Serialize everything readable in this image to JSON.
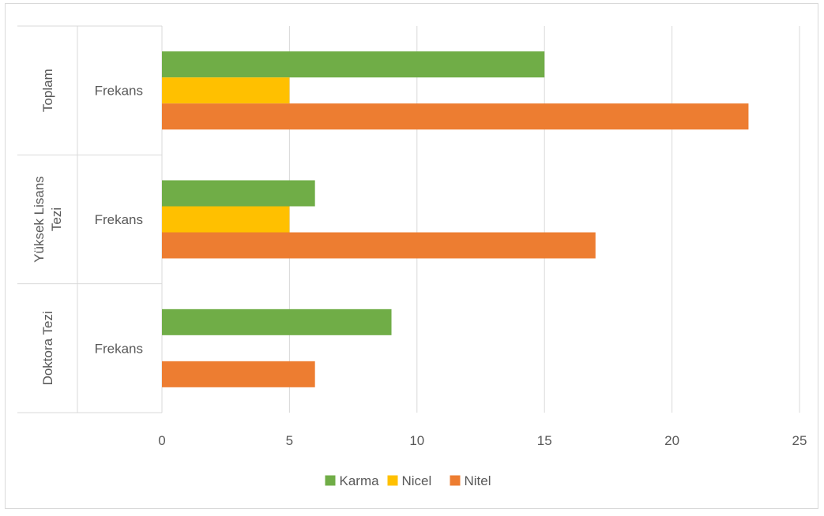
{
  "chart_data": {
    "type": "bar",
    "orientation": "horizontal",
    "title": "",
    "xlabel": "",
    "ylabel": "",
    "xlim": [
      0,
      25
    ],
    "x_ticks": [
      0,
      5,
      10,
      15,
      20,
      25
    ],
    "grid": "vertical",
    "legend_position": "bottom",
    "groups": [
      {
        "group": "Toplam",
        "category": "Frekans"
      },
      {
        "group": "Yüksek Lisans Tezi",
        "category": "Frekans"
      },
      {
        "group": "Doktora Tezi",
        "category": "Frekans"
      }
    ],
    "series": [
      {
        "name": "Karma",
        "color": "#70AD47",
        "values": [
          15,
          6,
          9
        ]
      },
      {
        "name": "Nicel",
        "color": "#FFC000",
        "values": [
          5,
          5,
          null
        ]
      },
      {
        "name": "Nitel",
        "color": "#ED7D31",
        "values": [
          23,
          17,
          6
        ]
      }
    ]
  }
}
